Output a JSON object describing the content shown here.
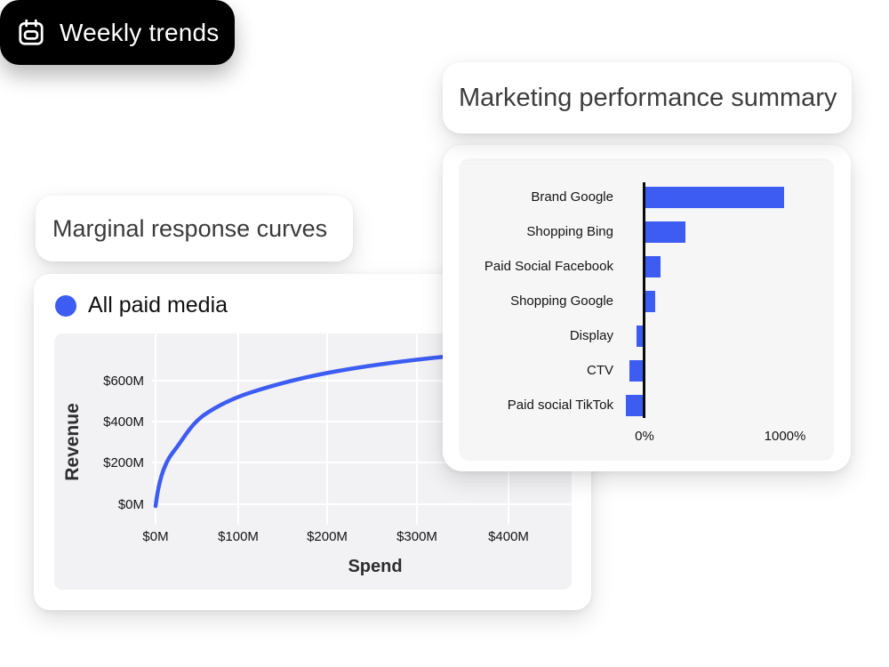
{
  "chips": {
    "weekly_trends_label": "Weekly trends",
    "response_curves_label": "Marginal response curves",
    "summary_label": "Marketing performance summary"
  },
  "colors": {
    "accent_blue": "#3D5CF2",
    "chip_black": "#000000",
    "card_white": "#FFFFFF",
    "line_plot_bg": "#F2F2F4",
    "bar_panel_bg": "#F6F6F7",
    "grid_line": "#FFFFFF",
    "axis_line": "#0A0A0A",
    "title_text": "#3A3A3A",
    "chart_text": "#141414"
  },
  "icons": {
    "weekly_chip_icon": "calendar-icon",
    "legend_marker": "blue-dot"
  },
  "chart_data": [
    {
      "type": "line",
      "title": "",
      "legend": [
        "All paid media"
      ],
      "legend_position": "top-left",
      "xlabel": "Spend",
      "ylabel": "Revenue",
      "x_tick_labels": [
        "$0M",
        "$100M",
        "$200M",
        "$300M",
        "$400M"
      ],
      "y_tick_labels": [
        "$0M",
        "$200M",
        "$400M",
        "$600M"
      ],
      "xlim_M": [
        0,
        475
      ],
      "ylim_M": [
        0,
        830
      ],
      "grid": true,
      "line_color": "#3D5CF2",
      "series": [
        {
          "name": "All paid media",
          "spend_M": [
            0,
            10,
            20,
            40,
            60,
            80,
            100,
            150,
            200,
            250,
            300,
            350,
            400,
            450
          ],
          "revenue_M": [
            0,
            120,
            210,
            335,
            420,
            480,
            525,
            600,
            645,
            680,
            705,
            725,
            740,
            755
          ]
        }
      ]
    },
    {
      "type": "bar",
      "orientation": "horizontal",
      "title": "",
      "categories": [
        "Brand Google",
        "Shopping Bing",
        "Paid Social Facebook",
        "Shopping Google",
        "Display",
        "CTV",
        "Paid social TikTok"
      ],
      "values_pct": [
        1000,
        300,
        120,
        85,
        -50,
        -100,
        -125
      ],
      "x_tick_labels": [
        "0%",
        "1000%"
      ],
      "x_tick_values_pct": [
        0,
        1000
      ],
      "xlim_pct": [
        -230,
        1470
      ],
      "grid": false,
      "bar_color": "#3D5CF2",
      "legend_position": "none"
    }
  ]
}
